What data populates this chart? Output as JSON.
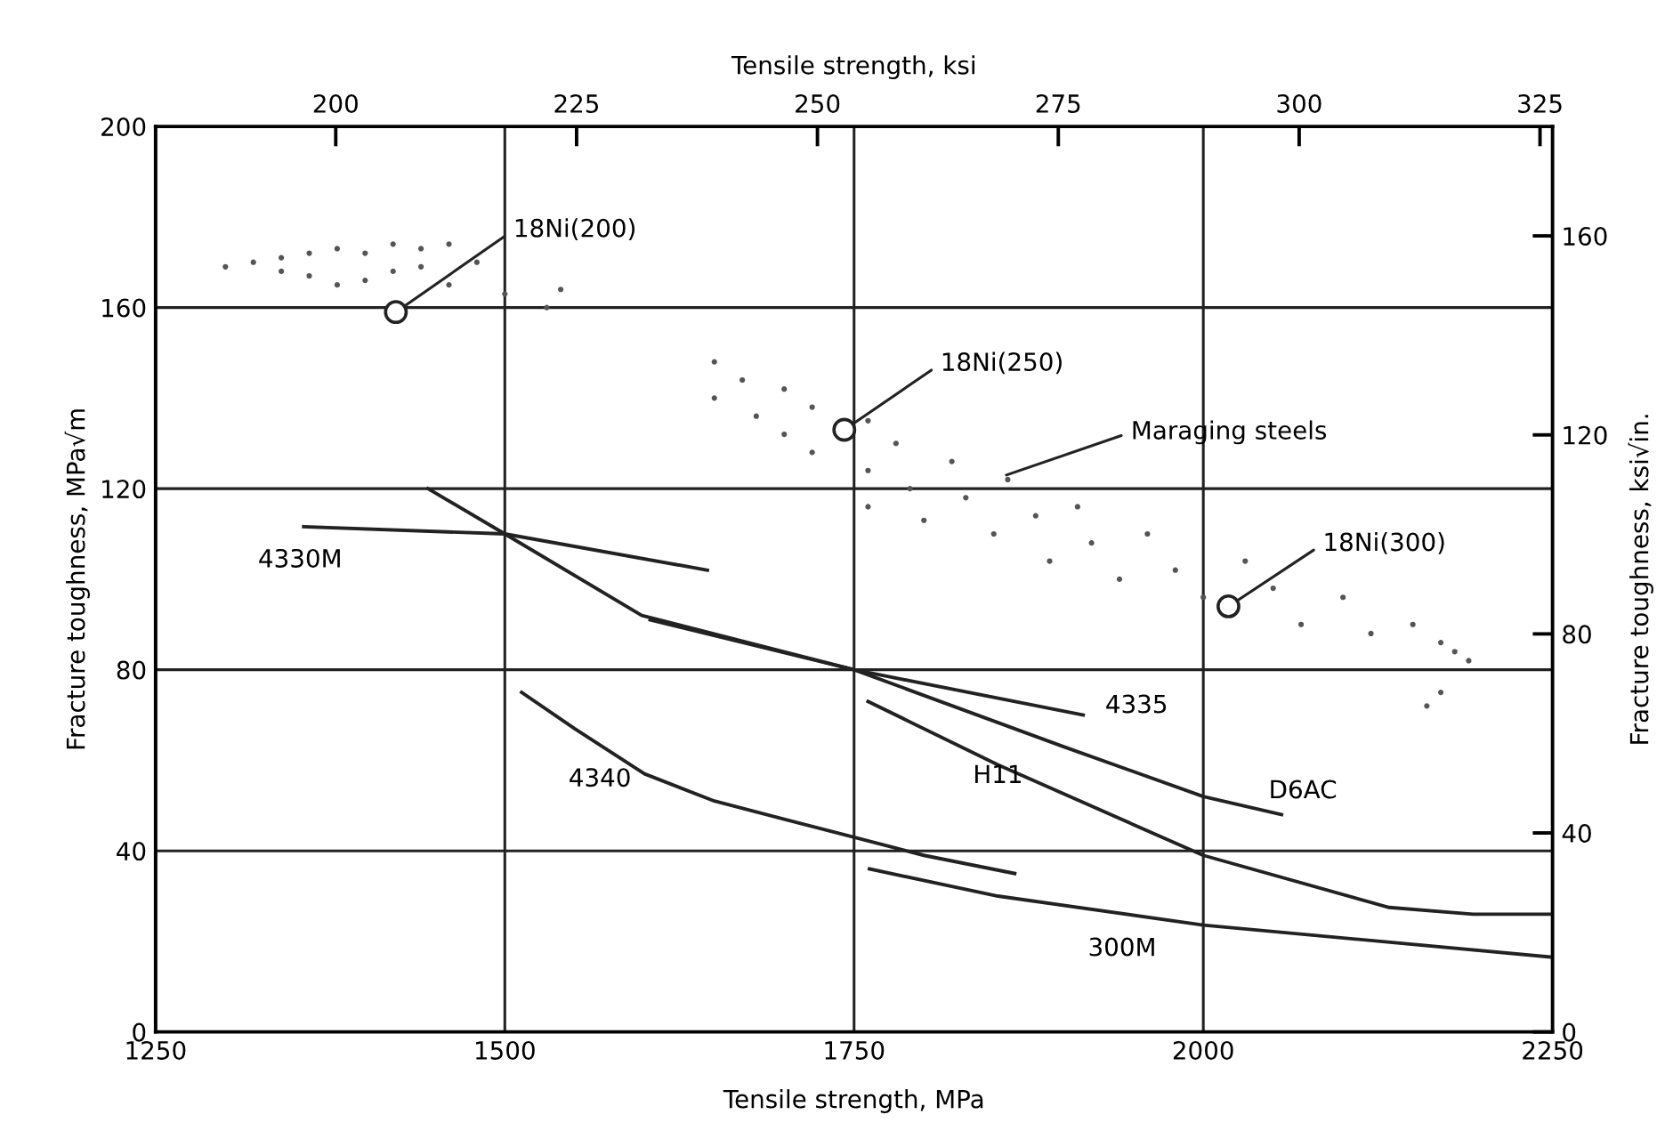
{
  "chart_data": {
    "type": "line",
    "xlabel": "Tensile strength, MPa",
    "x2label": "Tensile strength, ksi",
    "ylabel": "Fracture toughness, MPa√m",
    "y2label": "Fracture toughness, ksi√in.",
    "xlim": [
      1250,
      2250
    ],
    "xticks": [
      1250,
      1500,
      1750,
      2000,
      2250
    ],
    "ylim": [
      0,
      200
    ],
    "yticks": [
      0,
      40,
      80,
      120,
      160,
      200
    ],
    "x2lim": [
      181.3,
      326.3
    ],
    "x2ticks": [
      200,
      225,
      250,
      275,
      300,
      325
    ],
    "y2lim": [
      0,
      182
    ],
    "y2ticks": [
      0,
      40,
      80,
      120,
      160
    ],
    "grid": true,
    "line_style": "solid",
    "series": [
      {
        "type": "scatter",
        "marker": "dot",
        "color": "#555555",
        "x": [
          1300,
          1320,
          1340,
          1340,
          1360,
          1360,
          1380,
          1380,
          1400,
          1400,
          1420,
          1420,
          1440,
          1440,
          1460,
          1460,
          1480,
          1500,
          1540,
          1530
        ],
        "values": [
          169,
          170,
          168,
          171,
          172,
          167,
          173,
          165,
          172,
          166,
          174,
          168,
          173,
          169,
          174,
          165,
          170,
          163,
          164,
          160
        ]
      },
      {
        "type": "scatter",
        "marker": "dot",
        "color": "#555555",
        "x": [
          1650,
          1650,
          1670,
          1680,
          1700,
          1700,
          1720,
          1720,
          1760,
          1760,
          1760,
          1780,
          1790,
          1800,
          1820,
          1830,
          1850,
          1860,
          1880,
          1890,
          1910,
          1920,
          1940,
          1960,
          1980,
          2000,
          2030,
          2050,
          2070,
          2100,
          2120,
          2150,
          2170,
          2180,
          2190,
          2170,
          2160
        ],
        "values": [
          148,
          140,
          144,
          136,
          142,
          132,
          138,
          128,
          135,
          124,
          116,
          130,
          120,
          113,
          126,
          118,
          110,
          122,
          114,
          104,
          116,
          108,
          100,
          110,
          102,
          96,
          104,
          98,
          90,
          96,
          88,
          90,
          86,
          84,
          82,
          75,
          72
        ]
      },
      {
        "name": "4330M",
        "color": "#222222",
        "x": [
          1356,
          1500,
          1645
        ],
        "values": [
          111.6,
          110,
          102
        ]
      },
      {
        "name": "D6AC",
        "color": "#222222",
        "x": [
          1445,
          1500,
          1598,
          1750,
          1900,
          2000,
          2056
        ],
        "values": [
          120,
          110,
          92,
          80,
          63,
          52,
          48
        ]
      },
      {
        "name": "4335",
        "color": "#222222",
        "x": [
          1604,
          1750,
          1914
        ],
        "values": [
          91,
          80,
          70
        ]
      },
      {
        "name": "4340",
        "color": "#222222",
        "x": [
          1512,
          1550,
          1600,
          1650,
          1700,
          1750,
          1800,
          1865
        ],
        "values": [
          75,
          67,
          57,
          51,
          47,
          43,
          39,
          35
        ]
      },
      {
        "name": "H11",
        "color": "#222222",
        "x": [
          1760,
          1853,
          2000,
          2133,
          2193,
          2250
        ],
        "values": [
          73,
          59,
          39,
          27.5,
          26,
          26
        ]
      },
      {
        "name": "300M",
        "color": "#222222",
        "x": [
          1761,
          1853,
          2000,
          2250
        ],
        "values": [
          36,
          30,
          23.6,
          16.5
        ]
      },
      {
        "type": "scatter",
        "marker": "circle",
        "color": "#222222",
        "x": [
          1422,
          1743,
          2018
        ],
        "values": [
          159,
          133,
          94
        ]
      }
    ],
    "annotations": [
      {
        "text": "18Ni(200)",
        "x": 1422,
        "y": 159
      },
      {
        "text": "18Ni(250)",
        "x": 1743,
        "y": 133
      },
      {
        "text": "Maraging steels",
        "x": 1859,
        "y": 123
      },
      {
        "text": "18Ni(300)",
        "x": 2018,
        "y": 94
      }
    ]
  }
}
